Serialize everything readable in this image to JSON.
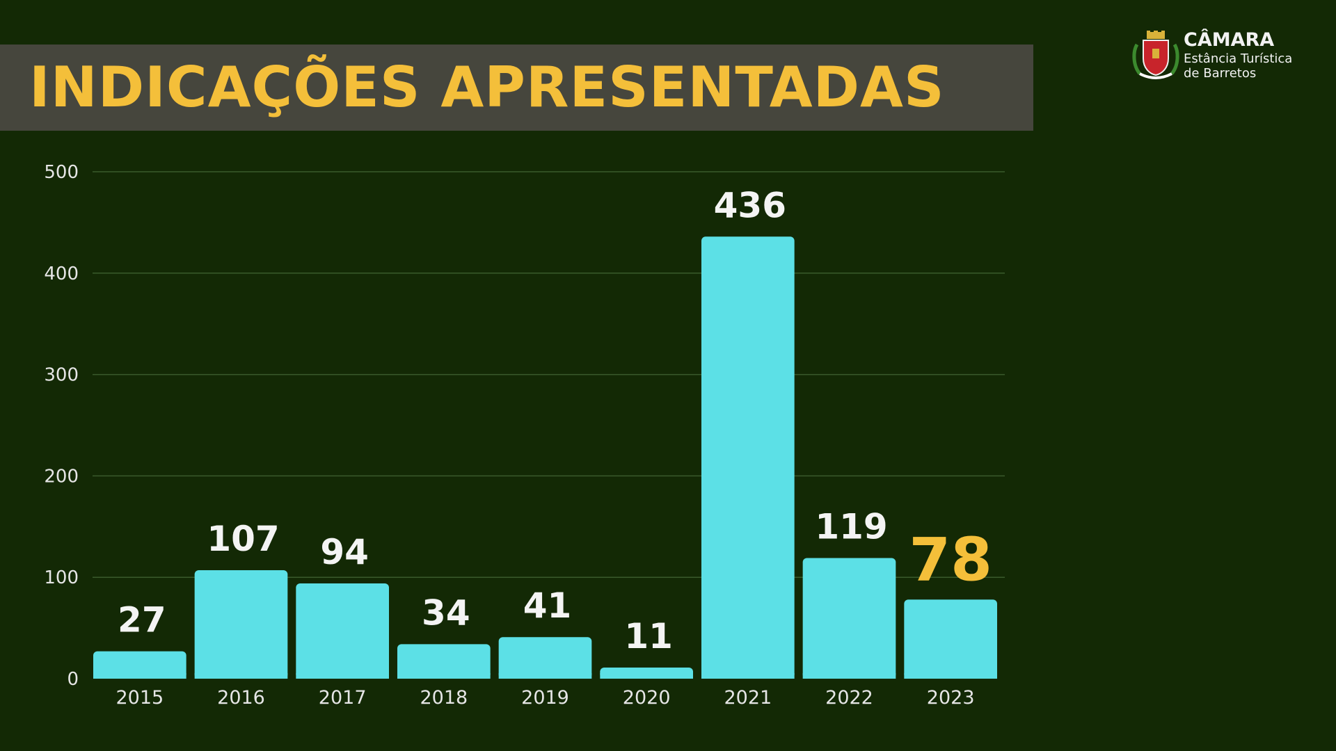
{
  "header": {
    "title": "INDICAÇÕES APRESENTADAS"
  },
  "logo": {
    "name": "CÂMARA",
    "subtitle_line1": "Estância Turística",
    "subtitle_line2": "de Barretos",
    "icon": "municipal-crest-icon"
  },
  "colors": {
    "background": "#132905",
    "title_band": "#46463d",
    "title_text": "#f4bf3a",
    "bar": "#5ce0e6",
    "value_label": "#f4f4f4",
    "highlight_label": "#f4bf3a",
    "gridline": "#3a5a2c"
  },
  "chart_data": {
    "type": "bar",
    "title": "INDICAÇÕES APRESENTADAS",
    "xlabel": "",
    "ylabel": "",
    "categories": [
      "2015",
      "2016",
      "2017",
      "2018",
      "2019",
      "2020",
      "2021",
      "2022",
      "2023"
    ],
    "values": [
      27,
      107,
      94,
      34,
      41,
      11,
      436,
      119,
      78
    ],
    "value_labels": [
      "27",
      "107",
      "94",
      "34",
      "41",
      "11",
      "436",
      "119",
      "78"
    ],
    "highlight_category": "2023",
    "ylim": [
      0,
      500
    ],
    "yticks": [
      0,
      100,
      200,
      300,
      400,
      500
    ],
    "grid": true,
    "legend": "none"
  }
}
